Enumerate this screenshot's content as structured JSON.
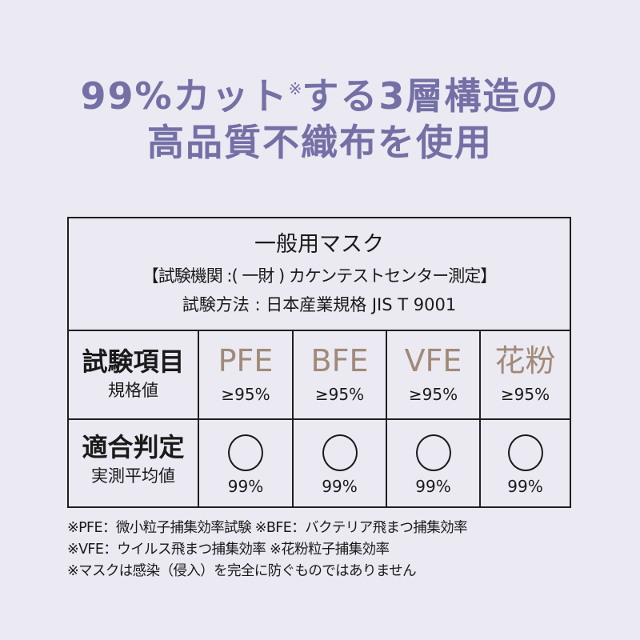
{
  "headline": {
    "line1_main": "99%カット",
    "line1_mark": "※",
    "line1_rest": "する3層構造の",
    "line2": "高品質不織布を使用",
    "color": "#7470a6"
  },
  "table": {
    "title": "一般用マスク",
    "institution": "【試験機関 :( 一財 ) カケンテストセンター測定】",
    "method": "試験方法 : 日本産業規格 JIS T 9001",
    "row_spec": {
      "label": "試験項目",
      "sublabel": "規格値"
    },
    "row_result": {
      "label": "適合判定",
      "sublabel": "実測平均値"
    },
    "items": [
      {
        "name": "PFE",
        "standard": "≥95%",
        "judgement": "pass-circle",
        "measured": "99%"
      },
      {
        "name": "BFE",
        "standard": "≥95%",
        "judgement": "pass-circle",
        "measured": "99%"
      },
      {
        "name": "VFE",
        "standard": "≥95%",
        "judgement": "pass-circle",
        "measured": "99%"
      },
      {
        "name": "花粉",
        "standard": "≥95%",
        "judgement": "pass-circle",
        "measured": "99%"
      }
    ],
    "item_color": "#a08a78"
  },
  "notes": [
    "※PFE：微小粒子捕集効率試験 ※BFE：バクテリア飛まつ捕集効率",
    "※VFE：ウイルス飛まつ捕集効率 ※花粉粒子捕集効率",
    "※マスクは感染（侵入）を完全に防ぐものではありません"
  ],
  "colors": {
    "background": "#ebe9f2",
    "text": "#1a1a1a",
    "border": "#1f1f1f"
  }
}
